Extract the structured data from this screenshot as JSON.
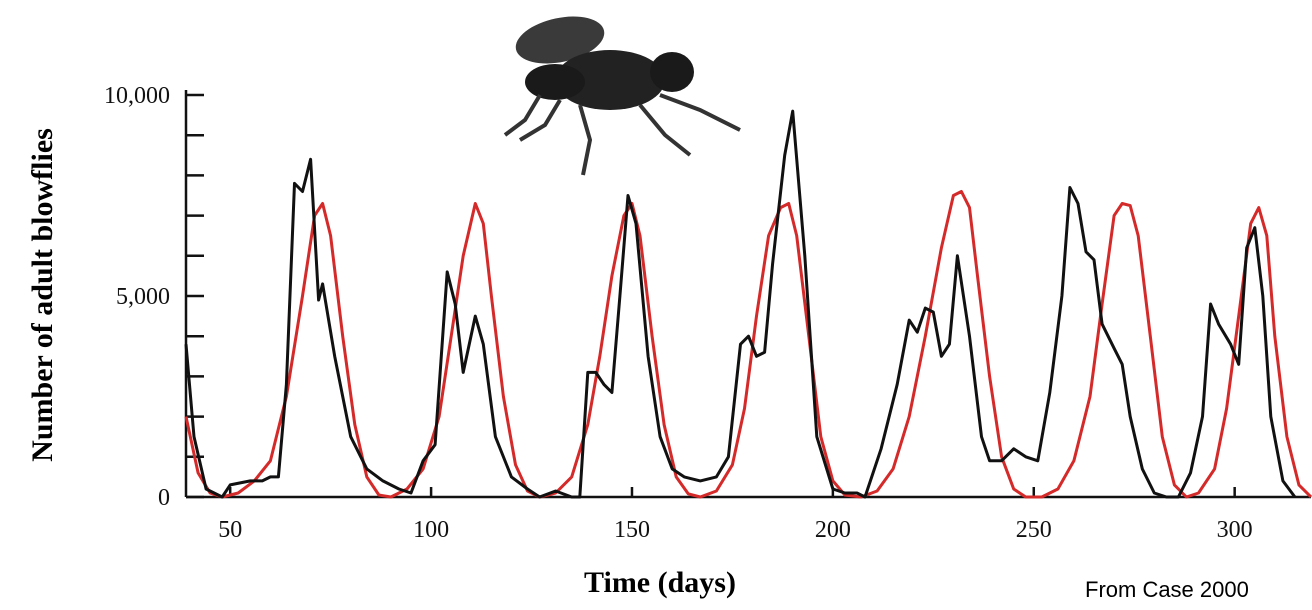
{
  "chart_data": {
    "type": "line",
    "x_label": "Time (days)",
    "y_label": "Number of adult blowflies",
    "annotation": "From Case 2000",
    "xlim": [
      39,
      319
    ],
    "ylim": [
      0,
      10000
    ],
    "xticks": [
      50,
      100,
      150,
      200,
      250,
      300
    ],
    "yticks": [
      0,
      {
        "value": 5000,
        "label": "5,000"
      },
      {
        "value": 10000,
        "label": "10,000"
      }
    ],
    "yminorticks": [
      1000,
      2000,
      3000,
      4000,
      6000,
      7000,
      8000,
      9000
    ],
    "series": [
      {
        "color": "#d42a2a",
        "x": [
          39,
          42,
          45,
          48,
          52,
          56,
          60,
          64,
          68,
          71,
          73,
          75,
          78,
          81,
          84,
          87,
          90,
          94,
          98,
          102,
          105,
          108,
          111,
          113,
          115,
          118,
          121,
          124,
          127,
          131,
          135,
          139,
          142,
          145,
          148,
          150,
          152,
          155,
          158,
          161,
          164,
          167,
          171,
          175,
          178,
          181,
          184,
          187,
          189,
          191,
          194,
          197,
          200,
          203,
          207,
          211,
          215,
          219,
          223,
          227,
          230,
          232,
          234,
          236,
          239,
          242,
          245,
          248,
          252,
          256,
          260,
          264,
          267,
          270,
          272,
          274,
          276,
          279,
          282,
          285,
          288,
          291,
          295,
          298,
          301,
          304,
          306,
          308,
          310,
          313,
          316,
          319
        ],
        "values": [
          2000,
          600,
          100,
          0,
          100,
          400,
          900,
          2500,
          5000,
          7000,
          7300,
          6500,
          4000,
          1800,
          500,
          50,
          0,
          200,
          700,
          2000,
          4000,
          6000,
          7300,
          6800,
          5000,
          2500,
          800,
          150,
          0,
          100,
          500,
          1800,
          3500,
          5500,
          7000,
          7300,
          6500,
          4000,
          1800,
          500,
          80,
          0,
          150,
          800,
          2200,
          4500,
          6500,
          7200,
          7300,
          6500,
          4000,
          1500,
          400,
          50,
          0,
          150,
          700,
          2000,
          4000,
          6200,
          7500,
          7600,
          7200,
          5500,
          3000,
          1000,
          200,
          0,
          0,
          200,
          900,
          2500,
          4800,
          7000,
          7300,
          7250,
          6500,
          4000,
          1500,
          300,
          0,
          100,
          700,
          2200,
          4500,
          6800,
          7200,
          6500,
          4000,
          1500,
          300,
          0
        ]
      },
      {
        "color": "#111111",
        "x": [
          39,
          41,
          44,
          48,
          50,
          55,
          58,
          60,
          62,
          64,
          66,
          68,
          70,
          72,
          73,
          76,
          80,
          84,
          88,
          92,
          95,
          98,
          101,
          104,
          106,
          108,
          111,
          113,
          116,
          120,
          124,
          127,
          131,
          135,
          137,
          139,
          141,
          143,
          145,
          147,
          149,
          151,
          154,
          157,
          160,
          163,
          167,
          171,
          174,
          177,
          179,
          181,
          183,
          185,
          188,
          190,
          193,
          196,
          200,
          203,
          206,
          208,
          212,
          216,
          219,
          221,
          223,
          225,
          227,
          229,
          231,
          234,
          237,
          239,
          242,
          245,
          248,
          251,
          254,
          257,
          259,
          261,
          263,
          265,
          267,
          270,
          272,
          274,
          277,
          280,
          283,
          286,
          289,
          292,
          294,
          296,
          299,
          301,
          303,
          305,
          307,
          309,
          312,
          315
        ],
        "values": [
          3800,
          1500,
          200,
          0,
          300,
          400,
          400,
          500,
          500,
          2800,
          7800,
          7600,
          8400,
          4900,
          5300,
          3500,
          1500,
          700,
          400,
          200,
          100,
          900,
          1300,
          5600,
          4800,
          3100,
          4500,
          3800,
          1500,
          500,
          200,
          0,
          150,
          0,
          0,
          3100,
          3100,
          2800,
          2600,
          5000,
          7500,
          6800,
          3500,
          1500,
          700,
          500,
          400,
          500,
          1000,
          3800,
          4000,
          3500,
          3600,
          5800,
          8500,
          9600,
          6000,
          1500,
          200,
          100,
          100,
          0,
          1200,
          2800,
          4400,
          4100,
          4700,
          4600,
          3500,
          3800,
          6000,
          4000,
          1500,
          900,
          900,
          1200,
          1000,
          900,
          2600,
          5000,
          7700,
          7300,
          6100,
          5900,
          4300,
          3700,
          3300,
          2000,
          700,
          100,
          0,
          0,
          600,
          2000,
          4800,
          4300,
          3800,
          3300,
          6200,
          6700,
          5000,
          2000,
          400,
          0
        ]
      }
    ]
  }
}
